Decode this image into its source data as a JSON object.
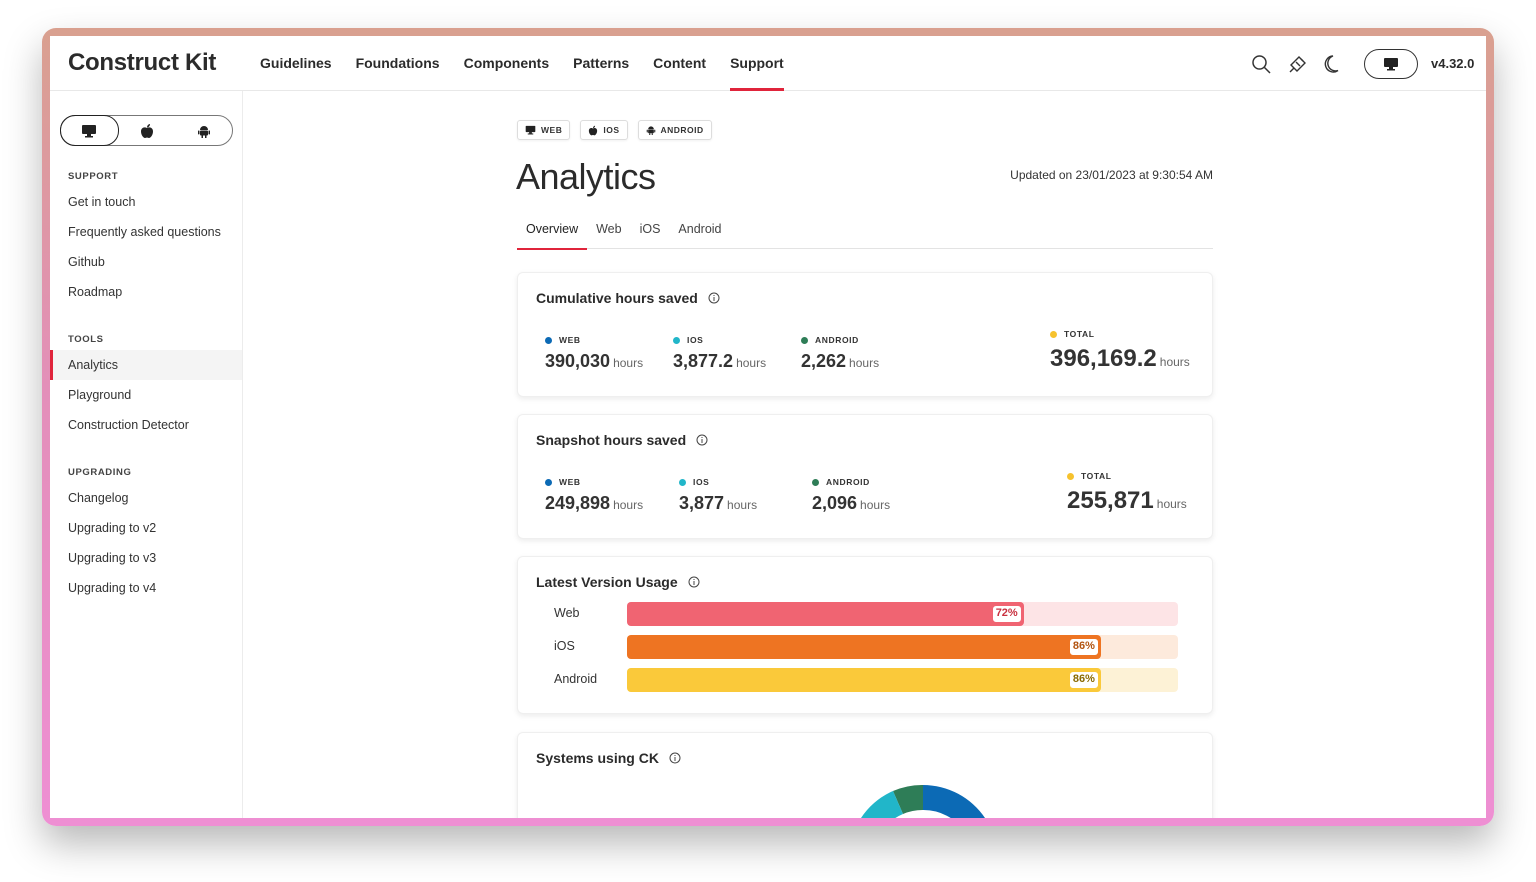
{
  "header": {
    "brand": "Construct Kit",
    "nav": [
      "Guidelines",
      "Foundations",
      "Components",
      "Patterns",
      "Content",
      "Support"
    ],
    "active_nav": "Support",
    "version": "v4.32.0",
    "icons": [
      "search-icon",
      "brush-icon",
      "moon-icon",
      "monitor-icon"
    ]
  },
  "sidebar": {
    "platform_toggle": [
      "monitor-icon",
      "apple-icon",
      "android-icon"
    ],
    "sections": [
      {
        "title": "SUPPORT",
        "items": [
          "Get in touch",
          "Frequently asked questions",
          "Github",
          "Roadmap"
        ]
      },
      {
        "title": "TOOLS",
        "items": [
          "Analytics",
          "Playground",
          "Construction Detector"
        ]
      },
      {
        "title": "UPGRADING",
        "items": [
          "Changelog",
          "Upgrading to v2",
          "Upgrading to v3",
          "Upgrading to v4"
        ]
      }
    ],
    "active_item": "Analytics"
  },
  "main": {
    "chips": [
      "WEB",
      "IOS",
      "ANDROID"
    ],
    "title": "Analytics",
    "updated": "Updated on 23/01/2023 at 9:30:54 AM",
    "tabs": [
      "Overview",
      "Web",
      "iOS",
      "Android"
    ],
    "active_tab": "Overview",
    "cumulative": {
      "title": "Cumulative hours saved",
      "web_label": "WEB",
      "web_value": "390,030",
      "ios_label": "IOS",
      "ios_value": "3,877.2",
      "android_label": "ANDROID",
      "android_value": "2,262",
      "total_label": "TOTAL",
      "total_value": "396,169.2",
      "unit": "hours"
    },
    "snapshot": {
      "title": "Snapshot hours saved",
      "web_label": "WEB",
      "web_value": "249,898",
      "ios_label": "IOS",
      "ios_value": "3,877",
      "android_label": "ANDROID",
      "android_value": "2,096",
      "total_label": "TOTAL",
      "total_value": "255,871",
      "unit": "hours"
    },
    "usage": {
      "title": "Latest Version Usage",
      "rows": [
        {
          "label": "Web",
          "pct": 72,
          "pct_text": "72%"
        },
        {
          "label": "iOS",
          "pct": 86,
          "pct_text": "86%"
        },
        {
          "label": "Android",
          "pct": 86,
          "pct_text": "86%"
        }
      ]
    },
    "systems": {
      "title": "Systems using CK"
    }
  },
  "colors": {
    "accent": "#e0243b",
    "web": "#0c6ab5",
    "ios": "#21b6c9",
    "android": "#2e7d57",
    "total": "#f6c22e",
    "bar_web": "#f06472",
    "bar_web_track": "#fde4e6",
    "bar_ios": "#ee7422",
    "bar_ios_track": "#fdeadc",
    "bar_android": "#fac93a",
    "bar_android_track": "#fdf2d6"
  }
}
